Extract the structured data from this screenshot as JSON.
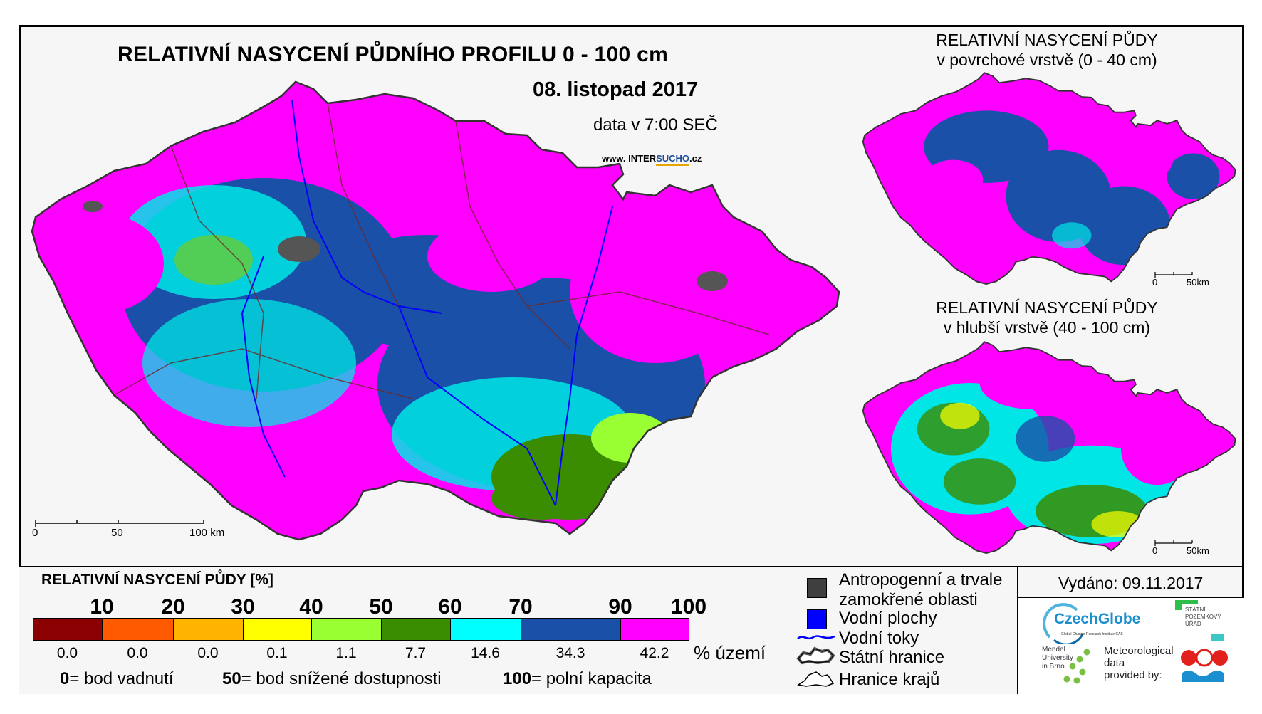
{
  "main": {
    "title": "RELATIVNÍ NASYCENÍ PŮDNÍHO PROFILU 0 - 100 cm",
    "date": "08. listopad 2017",
    "time_info": "data v 7:00 SEČ",
    "website_prefix": "www. INTER",
    "website_highlight": "SUCHO",
    "website_suffix": ".cz",
    "scale_labels": [
      "0",
      "50",
      "100 km"
    ]
  },
  "inset_top": {
    "title_line1": "RELATIVNÍ NASYCENÍ PŮDY",
    "title_line2": "v povrchové vrstvě (0 - 40 cm)",
    "scale_labels": [
      "0",
      "50km"
    ]
  },
  "inset_bottom": {
    "title_line1": "RELATIVNÍ NASYCENÍ PŮDY",
    "title_line2": "v hlubší vrstvě (40 - 100 cm)",
    "scale_labels": [
      "0",
      "50km"
    ]
  },
  "legend": {
    "title": "RELATIVNÍ NASYCENÍ PŮDY [%]",
    "thresholds": [
      "10",
      "20",
      "30",
      "40",
      "50",
      "60",
      "70",
      "90",
      "100"
    ],
    "classes": [
      {
        "color": "#8b0000",
        "percent": "0.0"
      },
      {
        "color": "#ff5a00",
        "percent": "0.0"
      },
      {
        "color": "#ffb400",
        "percent": "0.0"
      },
      {
        "color": "#ffff00",
        "percent": "0.1"
      },
      {
        "color": "#99ff33",
        "percent": "1.1"
      },
      {
        "color": "#3a8c00",
        "percent": "7.7"
      },
      {
        "color": "#00ffff",
        "percent": "14.6"
      },
      {
        "color": "#1a50a8",
        "percent": "34.3"
      },
      {
        "color": "#ff00ff",
        "percent": "42.2"
      }
    ],
    "percent_label": "% území",
    "footnote": [
      {
        "value": "0",
        "text": "= bod vadnutí"
      },
      {
        "value": "50",
        "text": "= bod snížené dostupnosti"
      },
      {
        "value": "100",
        "text": "= polní kapacita"
      }
    ]
  },
  "map_legend": {
    "items": [
      {
        "label_line1": "Antropogenní a trvale",
        "label_line2": "zamokřené oblasti",
        "icon": "dark-square-icon",
        "color": "#3f3f3f"
      },
      {
        "label_line1": "Vodní plochy",
        "icon": "blue-square-icon",
        "color": "#0000ff"
      },
      {
        "label_line1": "Vodní toky",
        "icon": "river-line-icon",
        "color": "#0000ff"
      },
      {
        "label_line1": "Státní hranice",
        "icon": "state-border-icon"
      },
      {
        "label_line1": "Hranice krajů",
        "icon": "region-border-icon"
      }
    ]
  },
  "issued": "Vydáno: 09.11.2017",
  "logos": {
    "czechglobe": "CzechGlobe",
    "czechglobe_sub": "Global Change Research Institute CAS",
    "spu_line1": "STÁTNÍ",
    "spu_line2": "POZEMKOVÝ",
    "spu_line3": "ÚŘAD",
    "mendel_line1": "Mendel",
    "mendel_line2": "University",
    "mendel_line3": "in Brno",
    "met_line1": "Meteorological",
    "met_line2": "data",
    "met_line3": "provided by:"
  }
}
